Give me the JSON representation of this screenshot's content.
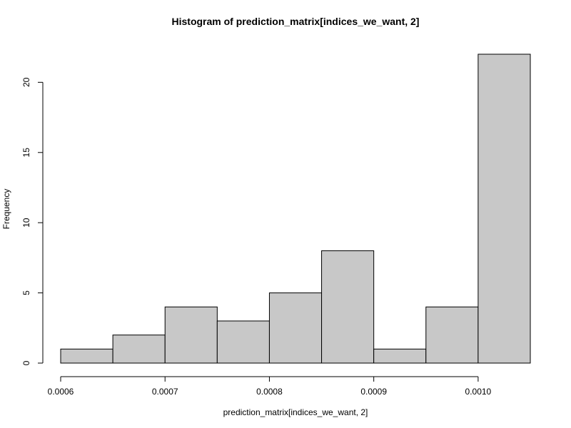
{
  "chart_data": {
    "type": "bar",
    "title": "Histogram of prediction_matrix[indices_we_want, 2]",
    "xlabel": "prediction_matrix[indices_we_want, 2]",
    "ylabel": "Frequency",
    "bins": [
      {
        "start": 0.0006,
        "end": 0.00065,
        "count": 1
      },
      {
        "start": 0.00065,
        "end": 0.0007,
        "count": 2
      },
      {
        "start": 0.0007,
        "end": 0.00075,
        "count": 4
      },
      {
        "start": 0.00075,
        "end": 0.0008,
        "count": 3
      },
      {
        "start": 0.0008,
        "end": 0.00085,
        "count": 5
      },
      {
        "start": 0.00085,
        "end": 0.0009,
        "count": 8
      },
      {
        "start": 0.0009,
        "end": 0.00095,
        "count": 1
      },
      {
        "start": 0.00095,
        "end": 0.001,
        "count": 4
      },
      {
        "start": 0.001,
        "end": 0.00105,
        "count": 22
      }
    ],
    "xlim": [
      0.0006,
      0.00105
    ],
    "ylim": [
      0,
      22
    ],
    "x_ticks": [
      {
        "value": 0.0006,
        "label": "0.0006"
      },
      {
        "value": 0.0007,
        "label": "0.0007"
      },
      {
        "value": 0.0008,
        "label": "0.0008"
      },
      {
        "value": 0.0009,
        "label": "0.0009"
      },
      {
        "value": 0.001,
        "label": "0.0010"
      }
    ],
    "y_ticks": [
      {
        "value": 0,
        "label": "0"
      },
      {
        "value": 5,
        "label": "5"
      },
      {
        "value": 10,
        "label": "10"
      },
      {
        "value": 15,
        "label": "15"
      },
      {
        "value": 20,
        "label": "20"
      }
    ],
    "bar_color": "#c8c8c8",
    "grid": false
  }
}
